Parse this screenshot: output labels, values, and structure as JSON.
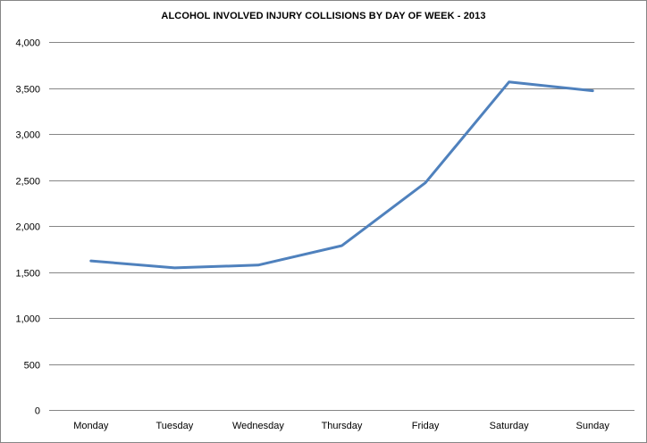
{
  "chart_data": {
    "type": "line",
    "title": "ALCOHOL INVOLVED INJURY COLLISIONS BY DAY OF WEEK - 2013",
    "xlabel": "",
    "ylabel": "",
    "categories": [
      "Monday",
      "Tuesday",
      "Wednesday",
      "Thursday",
      "Friday",
      "Saturday",
      "Sunday"
    ],
    "series": [
      {
        "values": [
          1620,
          1545,
          1575,
          1785,
          2470,
          3565,
          3470
        ],
        "color": "#4F81BD"
      }
    ],
    "ylim": [
      0,
      4000
    ],
    "yticks": [
      0,
      500,
      1000,
      1500,
      2000,
      2500,
      3000,
      3500,
      4000
    ],
    "ytick_labels": [
      "0",
      "500",
      "1,000",
      "1,500",
      "2,000",
      "2,500",
      "3,000",
      "3,500",
      "4,000"
    ],
    "grid": true,
    "legend": "none",
    "gridline_color": "#868686"
  }
}
